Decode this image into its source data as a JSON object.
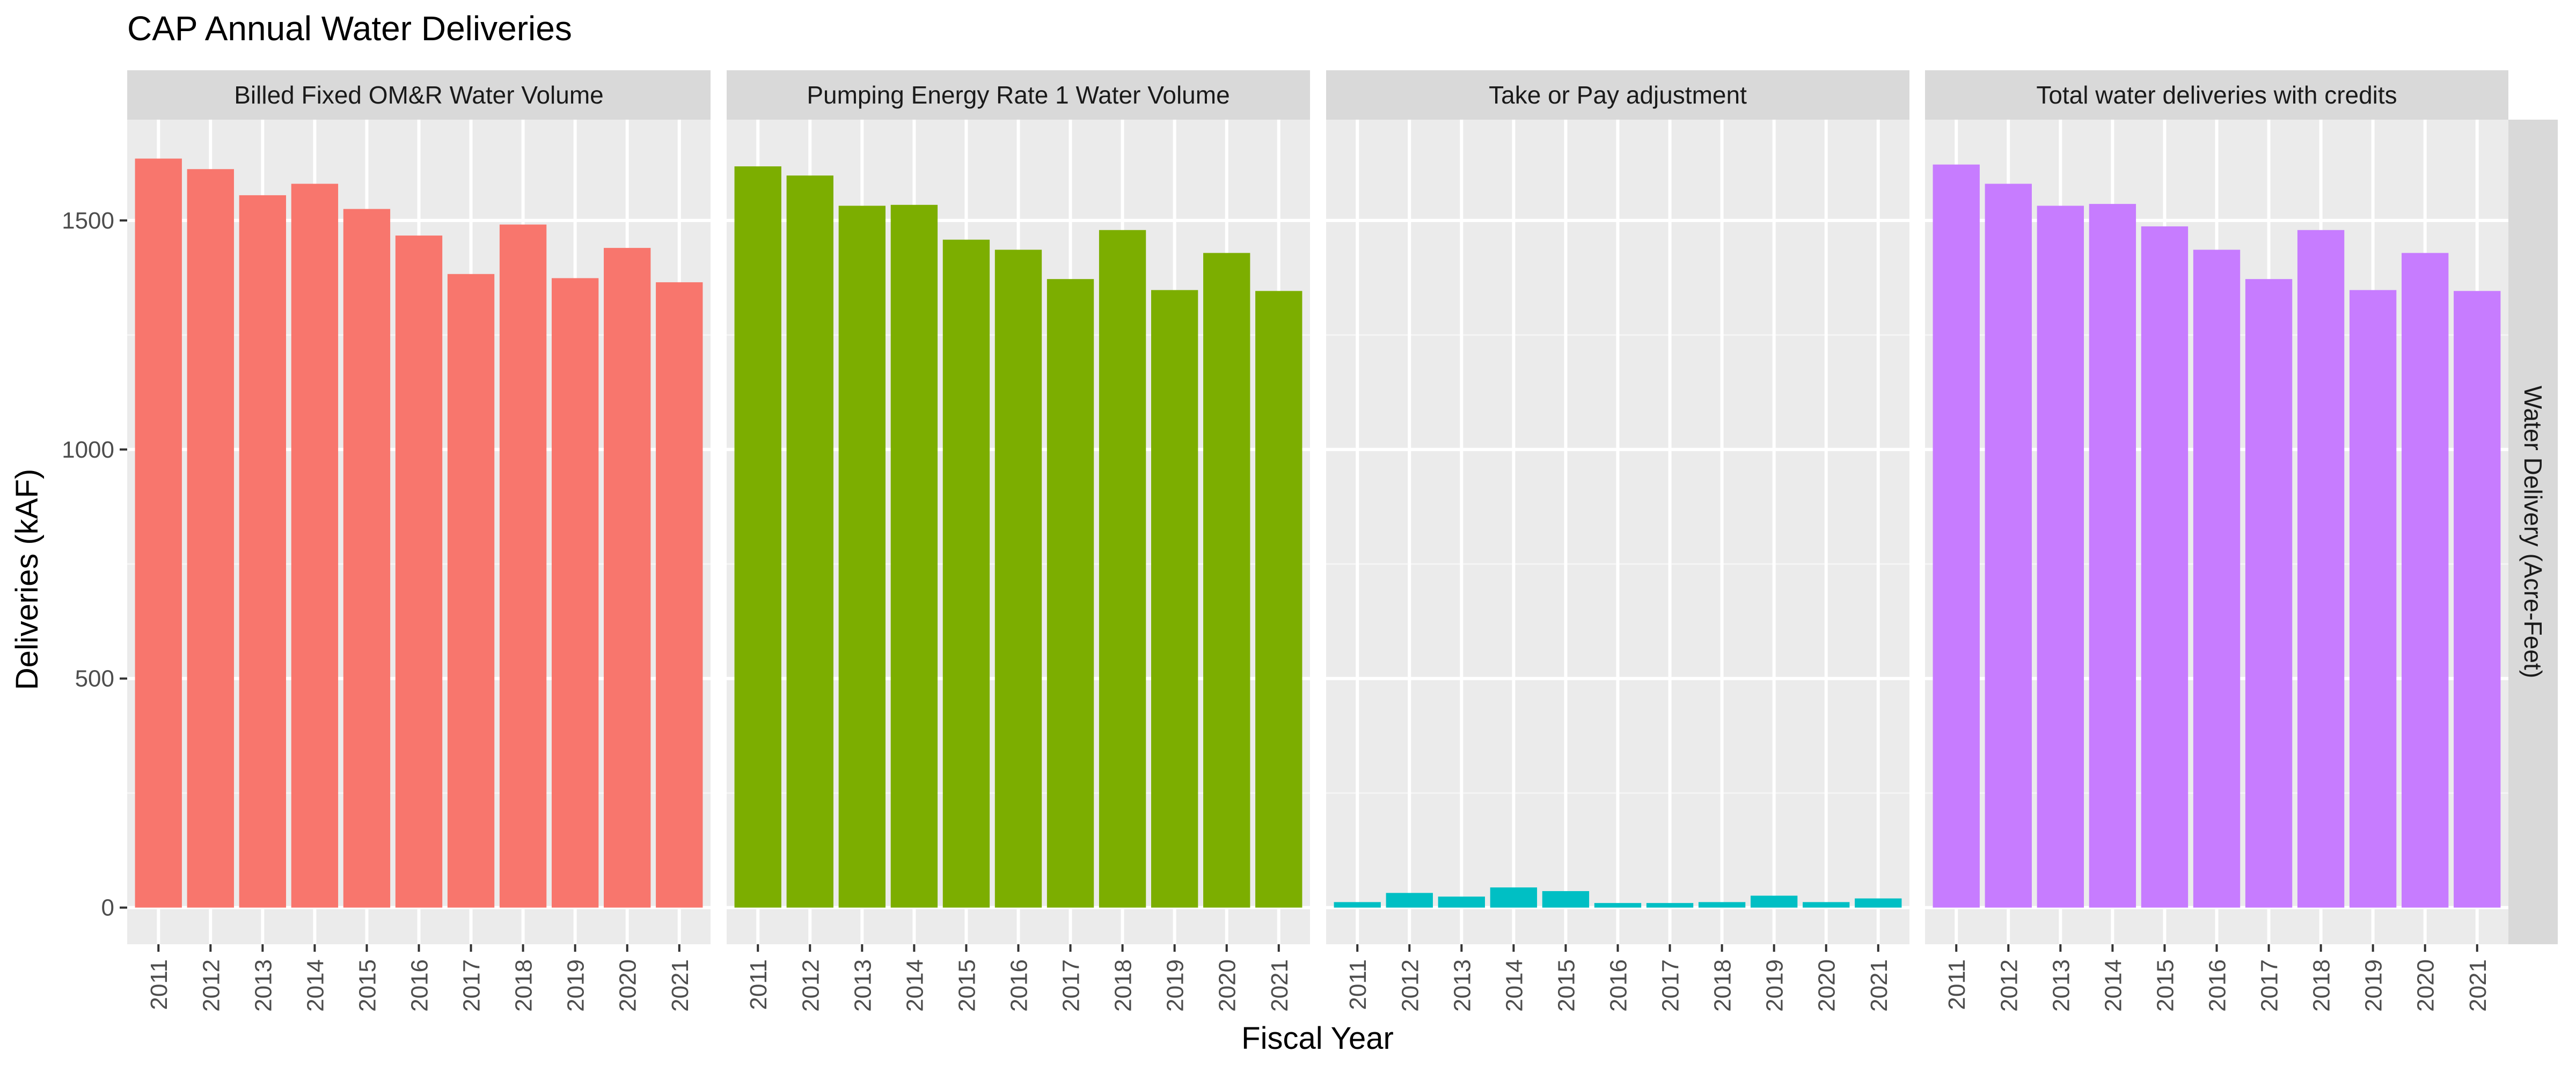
{
  "chart_data": {
    "type": "bar",
    "title": "CAP Annual Water Deliveries",
    "xlabel": "Fiscal Year",
    "ylabel": "Deliveries (kAF)",
    "strip_right_label": "Water Delivery (Acre-Feet)",
    "categories": [
      "2011",
      "2012",
      "2013",
      "2014",
      "2015",
      "2016",
      "2017",
      "2018",
      "2019",
      "2020",
      "2021"
    ],
    "ylim": [
      -80,
      1720
    ],
    "y_ticks": [
      0,
      500,
      1000,
      1500
    ],
    "grid": true,
    "legend": "none",
    "facets": [
      {
        "name": "Billed Fixed OM&R Water Volume",
        "color": "#F8766D",
        "values": [
          1635,
          1612,
          1555,
          1580,
          1525,
          1467,
          1383,
          1491,
          1374,
          1440,
          1365
        ]
      },
      {
        "name": "Pumping Energy Rate 1 Water Volume",
        "color": "#7CAE00",
        "values": [
          1618,
          1598,
          1532,
          1534,
          1458,
          1436,
          1372,
          1479,
          1348,
          1429,
          1346
        ]
      },
      {
        "name": "Take or Pay adjustment",
        "color": "#00BFC4",
        "values": [
          12,
          32,
          24,
          44,
          36,
          10,
          10,
          12,
          26,
          12,
          20
        ]
      },
      {
        "name": "Total water deliveries with credits",
        "color": "#C77CFF",
        "values": [
          1622,
          1580,
          1532,
          1536,
          1487,
          1436,
          1372,
          1479,
          1348,
          1429,
          1346
        ]
      }
    ]
  }
}
